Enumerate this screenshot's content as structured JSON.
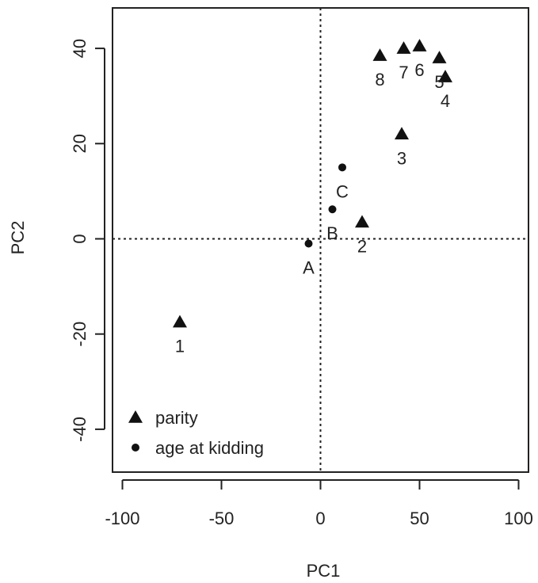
{
  "chart_data": {
    "type": "scatter",
    "title": "",
    "xlabel": "PC1",
    "ylabel": "PC2",
    "xlim": [
      -105,
      105
    ],
    "ylim": [
      -49,
      48.5
    ],
    "grid": false,
    "reference_lines": {
      "x": 0,
      "y": 0,
      "style": "dotted"
    },
    "xticks": [
      -100,
      -50,
      0,
      50,
      100
    ],
    "yticks": [
      -40,
      -20,
      0,
      20,
      40
    ],
    "legend": {
      "placement": "bottom-left",
      "entries": [
        {
          "name": "parity",
          "marker": "triangle"
        },
        {
          "name": "age at kidding",
          "marker": "circle"
        }
      ]
    },
    "series": [
      {
        "name": "parity",
        "marker": "triangle",
        "points": [
          {
            "label": "1",
            "x": -71,
            "y": -17.5
          },
          {
            "label": "2",
            "x": 21,
            "y": 3.5
          },
          {
            "label": "3",
            "x": 41,
            "y": 22
          },
          {
            "label": "4",
            "x": 63,
            "y": 34
          },
          {
            "label": "5",
            "x": 60,
            "y": 38
          },
          {
            "label": "6",
            "x": 50,
            "y": 40.5
          },
          {
            "label": "7",
            "x": 42,
            "y": 40
          },
          {
            "label": "8",
            "x": 30,
            "y": 38.5
          }
        ]
      },
      {
        "name": "age at kidding",
        "marker": "circle",
        "points": [
          {
            "label": "A",
            "x": -6,
            "y": -1
          },
          {
            "label": "B",
            "x": 6,
            "y": 6.2
          },
          {
            "label": "C",
            "x": 11,
            "y": 15
          }
        ]
      }
    ]
  }
}
